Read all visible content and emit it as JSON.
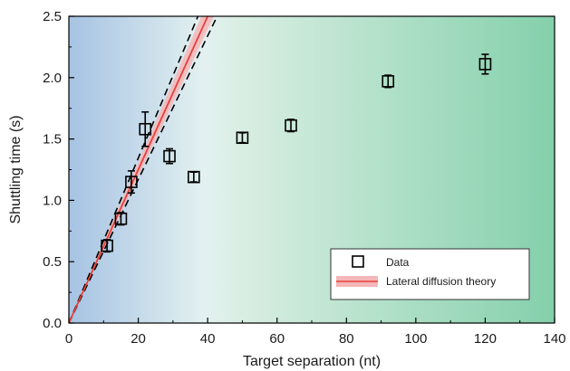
{
  "chart_data": {
    "type": "scatter",
    "title": "",
    "xlabel": "Target separation (nt)",
    "ylabel": "Shuttling time (s)",
    "xlim": [
      0,
      140
    ],
    "ylim": [
      0,
      2.5
    ],
    "xticks": [
      0,
      20,
      40,
      60,
      80,
      100,
      120,
      140
    ],
    "yticks": [
      0.0,
      0.5,
      1.0,
      1.5,
      2.0,
      2.5
    ],
    "xtick_labels": [
      "0",
      "20",
      "40",
      "60",
      "80",
      "100",
      "120",
      "140"
    ],
    "ytick_labels": [
      "0.0",
      "0.5",
      "1.0",
      "1.5",
      "2.0",
      "2.5"
    ],
    "grid": false,
    "legend_position": "bottom-right",
    "series": [
      {
        "name": "Data",
        "marker": "open-square",
        "color": "#000000",
        "x": [
          11,
          15,
          18,
          22,
          29,
          36,
          50,
          64,
          92,
          120
        ],
        "y": [
          0.63,
          0.85,
          1.15,
          1.58,
          1.36,
          1.19,
          1.51,
          1.61,
          1.97,
          2.11
        ],
        "err": [
          0.05,
          0.05,
          0.09,
          0.14,
          0.06,
          0.04,
          0.04,
          0.05,
          0.05,
          0.08
        ]
      },
      {
        "name": "Lateral diffusion theory",
        "kind": "line",
        "color": "#e8413a",
        "band_color": "#f4b6b8",
        "slope": 0.0625,
        "band_slopes": [
          0.0598,
          0.0655
        ],
        "bound_slopes": [
          0.0585,
          0.0672
        ]
      }
    ],
    "background_gradient": [
      "#a6c3e3",
      "#e3f1f0",
      "#d8eee2",
      "#84d0ab"
    ]
  }
}
